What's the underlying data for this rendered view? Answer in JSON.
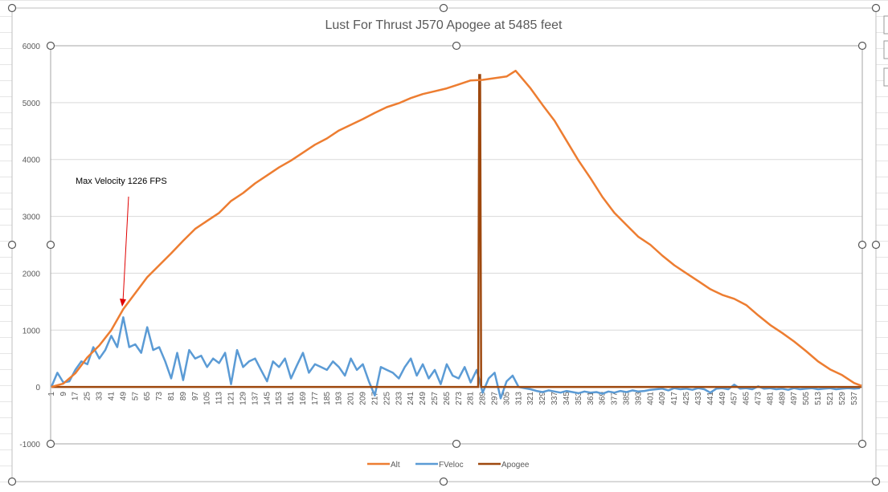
{
  "chart_data": {
    "type": "line",
    "title": "Lust For Thrust J570 Apogee at 5485 feet",
    "xlabel": "",
    "ylabel": "",
    "x_range": [
      1,
      542
    ],
    "x_tick_step": 8,
    "ylim": [
      -1000,
      6000
    ],
    "y_ticks": [
      -1000,
      0,
      1000,
      2000,
      3000,
      4000,
      5000,
      6000
    ],
    "grid": "horizontal",
    "legend": "bottom",
    "annotation": {
      "text": "Max Velocity 1226 FPS",
      "arrow_target": {
        "x": 49,
        "y": 1226
      },
      "color": "#E00000"
    },
    "series": [
      {
        "name": "Alt",
        "color": "#ED7D31",
        "x": [
          1,
          9,
          17,
          25,
          33,
          41,
          49,
          57,
          65,
          73,
          81,
          89,
          97,
          105,
          113,
          121,
          129,
          137,
          145,
          153,
          161,
          169,
          177,
          185,
          193,
          201,
          209,
          217,
          225,
          233,
          241,
          249,
          257,
          265,
          273,
          281,
          289,
          297,
          305,
          311,
          313,
          321,
          329,
          337,
          345,
          353,
          361,
          369,
          377,
          385,
          393,
          401,
          409,
          417,
          425,
          433,
          441,
          449,
          457,
          465,
          473,
          481,
          489,
          497,
          505,
          513,
          521,
          529,
          537,
          542
        ],
        "y": [
          0,
          60,
          240,
          520,
          730,
          1000,
          1370,
          1650,
          1930,
          2140,
          2350,
          2570,
          2780,
          2920,
          3060,
          3270,
          3410,
          3580,
          3720,
          3860,
          3980,
          4120,
          4260,
          4370,
          4510,
          4610,
          4710,
          4820,
          4920,
          4990,
          5080,
          5150,
          5200,
          5250,
          5320,
          5390,
          5400,
          5430,
          5460,
          5560,
          5500,
          5250,
          4960,
          4680,
          4330,
          3980,
          3670,
          3340,
          3060,
          2850,
          2640,
          2500,
          2310,
          2140,
          2000,
          1860,
          1720,
          1620,
          1550,
          1440,
          1260,
          1090,
          950,
          800,
          630,
          450,
          310,
          210,
          70,
          20
        ]
      },
      {
        "name": "FVeloc",
        "color": "#5B9BD5",
        "x_start": 1,
        "x_step": 4,
        "y": [
          0,
          250,
          80,
          100,
          300,
          450,
          400,
          700,
          500,
          650,
          900,
          700,
          1226,
          700,
          750,
          600,
          1050,
          650,
          700,
          450,
          150,
          600,
          120,
          650,
          500,
          550,
          350,
          500,
          420,
          600,
          50,
          650,
          350,
          450,
          500,
          300,
          100,
          450,
          350,
          500,
          150,
          380,
          600,
          250,
          400,
          350,
          300,
          450,
          350,
          200,
          500,
          300,
          400,
          100,
          -150,
          350,
          300,
          250,
          150,
          350,
          500,
          200,
          400,
          150,
          300,
          50,
          400,
          200,
          150,
          350,
          80,
          300,
          -100,
          150,
          250,
          -200,
          100,
          200,
          0,
          -20,
          -40,
          -70,
          -90,
          -60,
          -80,
          -100,
          -70,
          -90,
          -110,
          -80,
          -100,
          -90,
          -120,
          -80,
          -100,
          -70,
          -90,
          -60,
          -80,
          -70,
          -50,
          -40,
          -30,
          -60,
          -20,
          -40,
          -30,
          -50,
          -20,
          -40,
          -100,
          -30,
          -20,
          -40,
          40,
          -30,
          -20,
          -40,
          10,
          -30,
          -20,
          -40,
          -30,
          -50,
          -20,
          -40,
          -30,
          -20,
          -40,
          -30,
          -20,
          -40,
          -30,
          -20,
          -30,
          -20
        ]
      },
      {
        "name": "Apogee",
        "color": "#9E480E",
        "baseline": 0,
        "spike": {
          "x": 287,
          "y": 5485
        }
      }
    ]
  }
}
